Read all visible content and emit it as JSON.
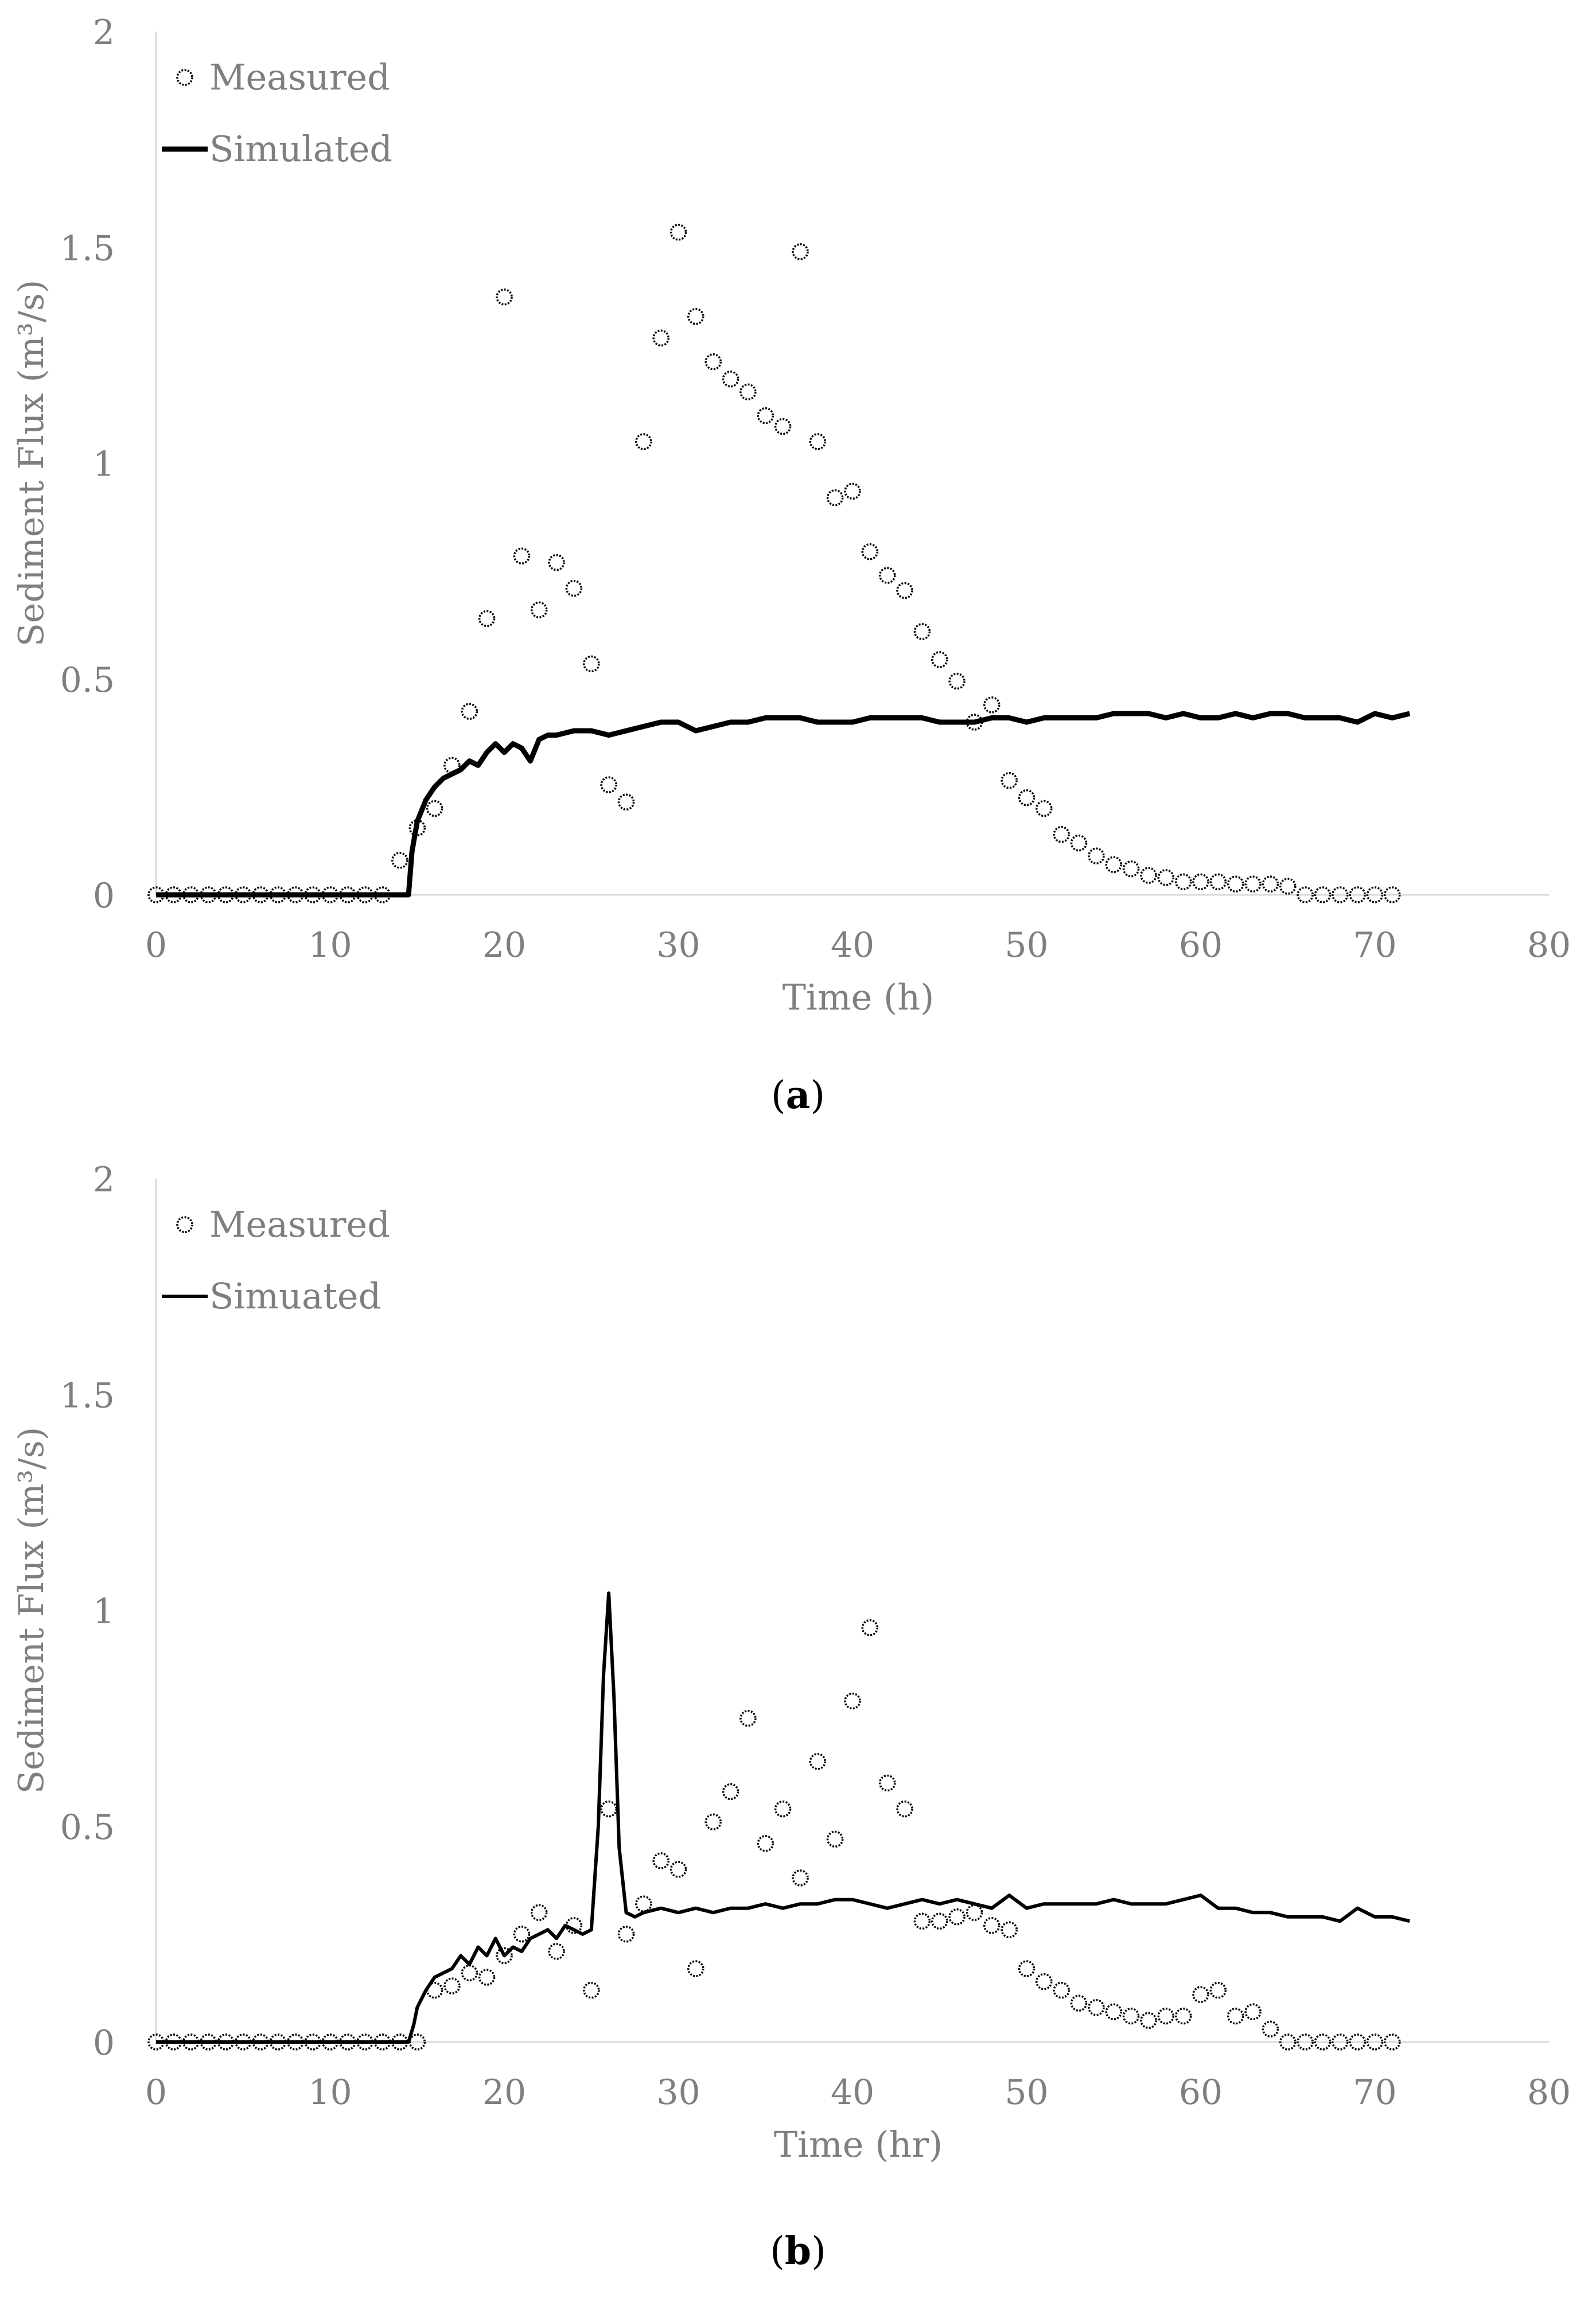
{
  "chart_data": [
    {
      "type": "scatter",
      "panel": "a",
      "caption_letter": "a",
      "caption_open": "(",
      "caption_close": ")",
      "xlabel": "Time (h)",
      "ylabel": "Sediment Flux (m³/s)",
      "xlim": [
        0,
        80
      ],
      "ylim": [
        0,
        2
      ],
      "xticks": [
        "0",
        "10",
        "20",
        "30",
        "40",
        "50",
        "60",
        "70",
        "80"
      ],
      "yticks": [
        "0",
        "0.5",
        "1",
        "1.5",
        "2"
      ],
      "legend": [
        "Measured",
        "Simulated"
      ],
      "series": [
        {
          "name": "Measured",
          "kind": "markers",
          "x": [
            0,
            1,
            2,
            3,
            4,
            5,
            6,
            7,
            8,
            9,
            10,
            11,
            12,
            13,
            14,
            15,
            16,
            17,
            18,
            19,
            20,
            21,
            22,
            23,
            24,
            25,
            26,
            27,
            28,
            29,
            30,
            31,
            32,
            33,
            34,
            35,
            36,
            37,
            38,
            39,
            40,
            41,
            42,
            43,
            44,
            45,
            46,
            47,
            48,
            49,
            50,
            51,
            52,
            53,
            54,
            55,
            56,
            57,
            58,
            59,
            60,
            61,
            62,
            63,
            64,
            65,
            66,
            67,
            68,
            69,
            70,
            71
          ],
          "y": [
            0,
            0,
            0,
            0,
            0,
            0,
            0,
            0,
            0,
            0,
            0,
            0,
            0,
            0,
            0.08,
            0.155,
            0.2,
            0.3,
            0.425,
            0.64,
            1.385,
            0.785,
            0.66,
            0.77,
            0.71,
            0.535,
            0.255,
            0.215,
            1.05,
            1.29,
            1.535,
            1.34,
            1.235,
            1.195,
            1.165,
            1.11,
            1.085,
            1.49,
            1.05,
            0.92,
            0.935,
            0.795,
            0.74,
            0.705,
            0.61,
            0.545,
            0.495,
            0.4,
            0.44,
            0.265,
            0.225,
            0.2,
            0.14,
            0.12,
            0.09,
            0.07,
            0.06,
            0.045,
            0.04,
            0.03,
            0.03,
            0.03,
            0.025,
            0.025,
            0.025,
            0.02,
            0,
            0,
            0,
            0,
            0,
            0
          ]
        },
        {
          "name": "Simulated",
          "kind": "line",
          "x": [
            0,
            14.5,
            14.7,
            15,
            15.5,
            16,
            16.5,
            17,
            17.5,
            18,
            18.5,
            19,
            19.5,
            20,
            20.5,
            21,
            21.5,
            22,
            22.5,
            23,
            24,
            25,
            26,
            27,
            28,
            29,
            30,
            31,
            32,
            33,
            34,
            35,
            36,
            37,
            38,
            39,
            40,
            41,
            42,
            43,
            44,
            45,
            46,
            47,
            48,
            49,
            50,
            51,
            52,
            53,
            54,
            55,
            56,
            57,
            58,
            59,
            60,
            61,
            62,
            63,
            64,
            65,
            66,
            67,
            68,
            69,
            70,
            71,
            72
          ],
          "y": [
            0,
            0,
            0.1,
            0.17,
            0.22,
            0.25,
            0.27,
            0.28,
            0.29,
            0.31,
            0.3,
            0.33,
            0.35,
            0.33,
            0.35,
            0.34,
            0.31,
            0.36,
            0.37,
            0.37,
            0.38,
            0.38,
            0.37,
            0.38,
            0.39,
            0.4,
            0.4,
            0.38,
            0.39,
            0.4,
            0.4,
            0.41,
            0.41,
            0.41,
            0.4,
            0.4,
            0.4,
            0.41,
            0.41,
            0.41,
            0.41,
            0.4,
            0.4,
            0.4,
            0.41,
            0.41,
            0.4,
            0.41,
            0.41,
            0.41,
            0.41,
            0.42,
            0.42,
            0.42,
            0.41,
            0.42,
            0.41,
            0.41,
            0.42,
            0.41,
            0.42,
            0.42,
            0.41,
            0.41,
            0.41,
            0.4,
            0.42,
            0.41,
            0.42
          ]
        }
      ]
    },
    {
      "type": "scatter",
      "panel": "b",
      "caption_letter": "b",
      "caption_open": "(",
      "caption_close": ")",
      "xlabel": "Time (hr)",
      "ylabel": "Sediment Flux (m³/s)",
      "xlim": [
        0,
        80
      ],
      "ylim": [
        0,
        2
      ],
      "xticks": [
        "0",
        "10",
        "20",
        "30",
        "40",
        "50",
        "60",
        "70",
        "80"
      ],
      "yticks": [
        "0",
        "0.5",
        "1",
        "1.5",
        "2"
      ],
      "legend": [
        "Measured",
        "Simuated"
      ],
      "series": [
        {
          "name": "Measured",
          "kind": "markers",
          "x": [
            0,
            1,
            2,
            3,
            4,
            5,
            6,
            7,
            8,
            9,
            10,
            11,
            12,
            13,
            14,
            15,
            16,
            17,
            18,
            19,
            20,
            21,
            22,
            23,
            24,
            25,
            26,
            27,
            28,
            29,
            30,
            31,
            32,
            33,
            34,
            35,
            36,
            37,
            38,
            39,
            40,
            41,
            42,
            43,
            44,
            45,
            46,
            47,
            48,
            49,
            50,
            51,
            52,
            53,
            54,
            55,
            56,
            57,
            58,
            59,
            60,
            61,
            62,
            63,
            64,
            65,
            66,
            67,
            68,
            69,
            70,
            71
          ],
          "y": [
            0,
            0,
            0,
            0,
            0,
            0,
            0,
            0,
            0,
            0,
            0,
            0,
            0,
            0,
            0,
            0,
            0.12,
            0.13,
            0.16,
            0.15,
            0.2,
            0.25,
            0.3,
            0.21,
            0.27,
            0.12,
            0.54,
            0.25,
            0.32,
            0.42,
            0.4,
            0.17,
            0.51,
            0.58,
            0.75,
            0.46,
            0.54,
            0.38,
            0.65,
            0.47,
            0.79,
            0.96,
            0.6,
            0.54,
            0.28,
            0.28,
            0.29,
            0.3,
            0.27,
            0.26,
            0.17,
            0.14,
            0.12,
            0.09,
            0.08,
            0.07,
            0.06,
            0.05,
            0.06,
            0.06,
            0.11,
            0.12,
            0.06,
            0.07,
            0.03,
            0,
            0,
            0,
            0,
            0,
            0,
            0
          ]
        },
        {
          "name": "Simuated",
          "kind": "line",
          "x": [
            0,
            14.5,
            14.8,
            15,
            15.5,
            16,
            16.5,
            17,
            17.5,
            18,
            18.5,
            19,
            19.5,
            20,
            20.5,
            21,
            21.5,
            22,
            22.5,
            23,
            23.5,
            24,
            24.5,
            25,
            25.4,
            25.7,
            26,
            26.3,
            26.6,
            27,
            27.5,
            28,
            29,
            30,
            31,
            32,
            33,
            34,
            35,
            36,
            37,
            38,
            39,
            40,
            41,
            42,
            43,
            44,
            45,
            46,
            47,
            48,
            49,
            50,
            51,
            52,
            53,
            54,
            55,
            56,
            57,
            58,
            59,
            60,
            61,
            62,
            63,
            64,
            65,
            66,
            67,
            68,
            69,
            70,
            71,
            72
          ],
          "y": [
            0,
            0,
            0.04,
            0.08,
            0.12,
            0.15,
            0.16,
            0.17,
            0.2,
            0.18,
            0.22,
            0.2,
            0.24,
            0.2,
            0.22,
            0.21,
            0.24,
            0.25,
            0.26,
            0.24,
            0.27,
            0.26,
            0.25,
            0.26,
            0.5,
            0.85,
            1.04,
            0.8,
            0.45,
            0.3,
            0.29,
            0.3,
            0.31,
            0.3,
            0.31,
            0.3,
            0.31,
            0.31,
            0.32,
            0.31,
            0.32,
            0.32,
            0.33,
            0.33,
            0.32,
            0.31,
            0.32,
            0.33,
            0.32,
            0.33,
            0.32,
            0.31,
            0.34,
            0.31,
            0.32,
            0.32,
            0.32,
            0.32,
            0.33,
            0.32,
            0.32,
            0.32,
            0.33,
            0.34,
            0.31,
            0.31,
            0.3,
            0.3,
            0.29,
            0.29,
            0.29,
            0.28,
            0.31,
            0.29,
            0.29,
            0.28
          ]
        }
      ]
    }
  ]
}
